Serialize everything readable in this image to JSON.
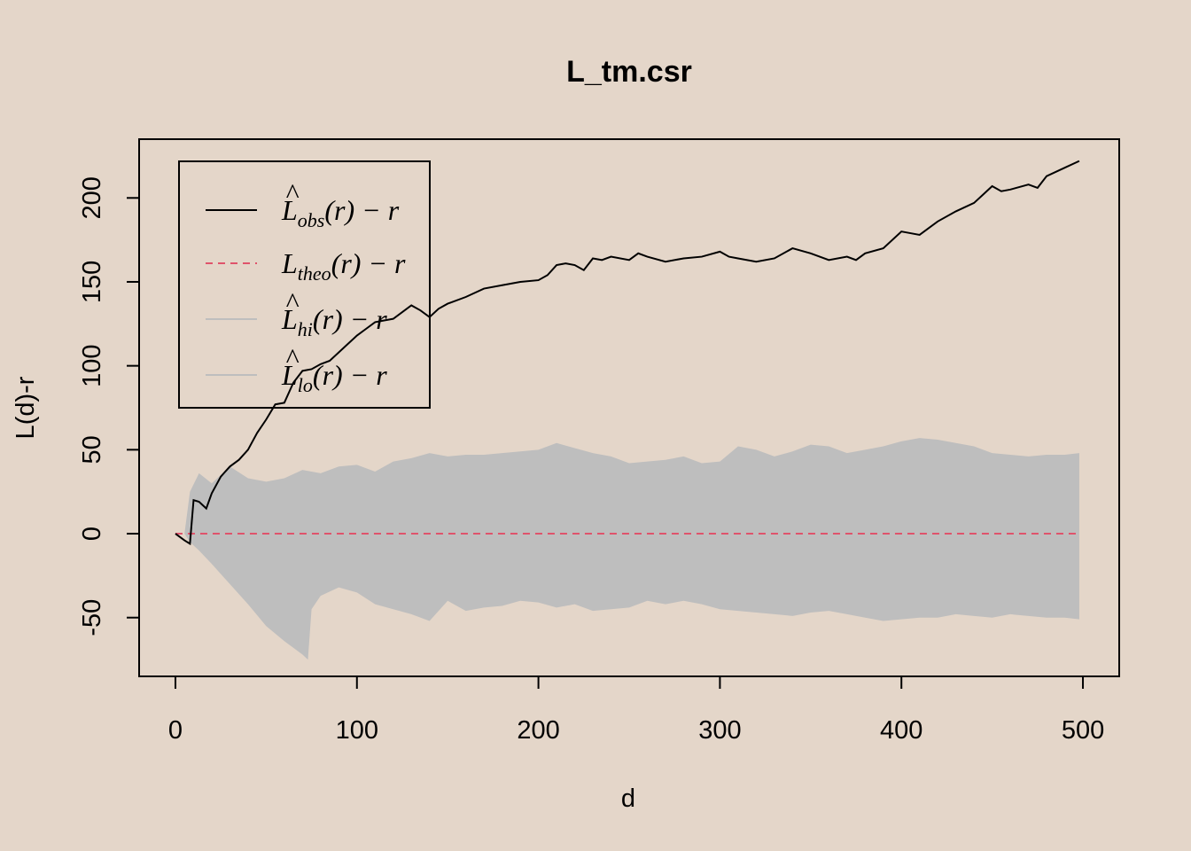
{
  "chart_data": {
    "type": "line",
    "title": "L_tm.csr",
    "xlabel": "d",
    "ylabel": "L(d)-r",
    "xlim": [
      -20,
      520
    ],
    "ylim": [
      -85,
      235
    ],
    "xticks": [
      0,
      100,
      200,
      300,
      400,
      500
    ],
    "xtick_labels": [
      "0",
      "100",
      "200",
      "300",
      "400",
      "500"
    ],
    "yticks": [
      -50,
      0,
      50,
      100,
      150,
      200
    ],
    "ytick_labels": [
      "-50",
      "0",
      "50",
      "100",
      "150",
      "200"
    ],
    "legend_position": "top-left",
    "colors": {
      "background": "#e4d6c9",
      "obs": "#000000",
      "theo": "#df536b",
      "envelope": "#bebebe"
    },
    "legend": [
      {
        "base": "L",
        "hat": "^",
        "sub": "obs",
        "rest": "(r) − r",
        "style": "solid",
        "color": "#000000"
      },
      {
        "base": "L",
        "hat": "",
        "sub": "theo",
        "rest": "(r) − r",
        "style": "dashed",
        "color": "#df536b"
      },
      {
        "base": "L",
        "hat": "^",
        "sub": "hi",
        "rest": "(r) − r",
        "style": "solid",
        "color": "#bebebe"
      },
      {
        "base": "L",
        "hat": "^",
        "sub": "lo",
        "rest": "(r) − r",
        "style": "solid",
        "color": "#bebebe"
      }
    ],
    "series": [
      {
        "name": "obs",
        "x": [
          0,
          5,
          8,
          10,
          13,
          17,
          20,
          25,
          30,
          35,
          40,
          45,
          50,
          55,
          60,
          65,
          70,
          75,
          80,
          85,
          90,
          95,
          100,
          105,
          110,
          115,
          120,
          125,
          130,
          135,
          140,
          145,
          150,
          160,
          170,
          180,
          190,
          200,
          205,
          210,
          215,
          220,
          225,
          230,
          235,
          240,
          250,
          255,
          260,
          270,
          280,
          290,
          300,
          305,
          310,
          320,
          330,
          340,
          350,
          360,
          370,
          375,
          380,
          390,
          400,
          405,
          410,
          420,
          430,
          440,
          445,
          450,
          455,
          460,
          470,
          475,
          480,
          490,
          498
        ],
        "y": [
          0,
          -4,
          -6,
          20,
          19,
          15,
          24,
          34,
          40,
          44,
          50,
          60,
          68,
          77,
          78,
          90,
          97,
          98,
          101,
          103,
          108,
          113,
          118,
          122,
          126,
          127,
          128,
          132,
          136,
          133,
          129,
          134,
          137,
          141,
          146,
          148,
          150,
          151,
          154,
          160,
          161,
          160,
          157,
          164,
          163,
          165,
          163,
          167,
          165,
          162,
          164,
          165,
          168,
          165,
          164,
          162,
          164,
          170,
          167,
          163,
          165,
          163,
          167,
          170,
          180,
          179,
          178,
          186,
          192,
          197,
          202,
          207,
          204,
          205,
          208,
          206,
          213,
          218,
          222
        ]
      },
      {
        "name": "theo",
        "x": [
          0,
          498
        ],
        "y": [
          0,
          0
        ]
      },
      {
        "name": "hi",
        "x": [
          5,
          8,
          13,
          20,
          30,
          40,
          50,
          60,
          70,
          80,
          90,
          100,
          110,
          120,
          130,
          140,
          150,
          160,
          170,
          180,
          190,
          200,
          210,
          220,
          230,
          240,
          250,
          260,
          270,
          280,
          290,
          300,
          310,
          320,
          330,
          340,
          350,
          360,
          370,
          380,
          390,
          400,
          410,
          420,
          430,
          440,
          450,
          460,
          470,
          480,
          490,
          498
        ],
        "y": [
          0,
          25,
          36,
          30,
          40,
          33,
          31,
          33,
          38,
          36,
          40,
          41,
          37,
          43,
          45,
          48,
          46,
          47,
          47,
          48,
          49,
          50,
          54,
          51,
          48,
          46,
          42,
          43,
          44,
          46,
          42,
          43,
          52,
          50,
          46,
          49,
          53,
          52,
          48,
          50,
          52,
          55,
          57,
          56,
          54,
          52,
          48,
          47,
          46,
          47,
          47,
          48
        ]
      },
      {
        "name": "lo",
        "x": [
          5,
          8,
          13,
          20,
          30,
          40,
          50,
          60,
          70,
          73,
          75,
          80,
          90,
          100,
          110,
          120,
          130,
          140,
          150,
          160,
          170,
          180,
          190,
          200,
          210,
          220,
          230,
          240,
          250,
          260,
          270,
          280,
          290,
          300,
          310,
          320,
          330,
          340,
          350,
          360,
          370,
          380,
          390,
          400,
          410,
          420,
          430,
          440,
          450,
          460,
          470,
          480,
          490,
          498
        ],
        "y": [
          0,
          -5,
          -10,
          -18,
          -30,
          -42,
          -55,
          -64,
          -72,
          -75,
          -45,
          -37,
          -32,
          -35,
          -42,
          -45,
          -48,
          -52,
          -40,
          -46,
          -44,
          -43,
          -40,
          -41,
          -44,
          -42,
          -46,
          -45,
          -44,
          -40,
          -42,
          -40,
          -42,
          -45,
          -46,
          -47,
          -48,
          -49,
          -47,
          -46,
          -48,
          -50,
          -52,
          -51,
          -50,
          -50,
          -48,
          -49,
          -50,
          -48,
          -49,
          -50,
          -50,
          -51
        ]
      }
    ]
  }
}
